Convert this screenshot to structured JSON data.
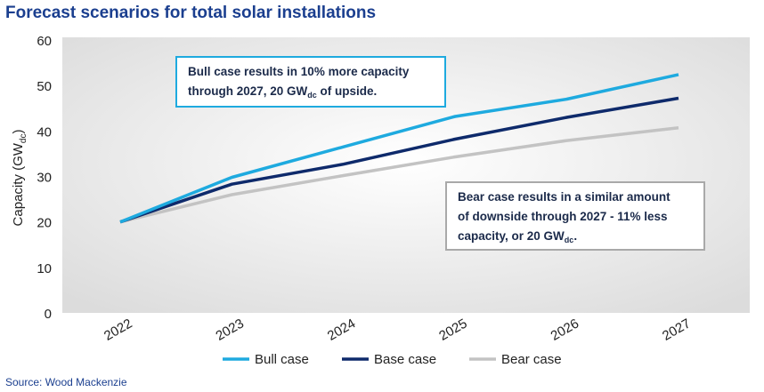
{
  "page": {
    "title": "Forecast scenarios for total solar installations",
    "source": "Source: Wood Mackenzie"
  },
  "colors": {
    "bull": "#1eaadf",
    "base": "#0e2a6b",
    "bear": "#c3c3c3",
    "title": "#1b3f8f",
    "plot_bg_inner": "#ffffff",
    "plot_bg_outer": "#dcdcdc"
  },
  "annotations": {
    "bull": {
      "line1": "Bull case results in 10% more capacity",
      "line2_pre": "through 2027, 20 GW",
      "line2_sub": "dc",
      "line2_post": " of upside."
    },
    "bear": {
      "line1": "Bear case results in a similar amount",
      "line2": "of downside through 2027 - 11% less",
      "line3_pre": "capacity, or 20 GW",
      "line3_sub": "dc",
      "line3_post": "."
    }
  },
  "chart_data": {
    "type": "line",
    "title": "Forecast scenarios for total solar installations",
    "categories": [
      "2022",
      "2023",
      "2024",
      "2025",
      "2026",
      "2027"
    ],
    "series": [
      {
        "name": "Bull case",
        "key": "bull",
        "values": [
          20,
          29.8,
          36.5,
          43.2,
          47,
          52.4
        ]
      },
      {
        "name": "Base case",
        "key": "base",
        "values": [
          20,
          28.3,
          32.7,
          38.2,
          43,
          47.2
        ]
      },
      {
        "name": "Bear case",
        "key": "bear",
        "values": [
          20,
          26,
          30.2,
          34.3,
          37.9,
          40.7
        ]
      }
    ],
    "ylabel": "Capacity (GW",
    "ylabel_sub": "dc",
    "ylabel_close": ")",
    "yticks": [
      "0",
      "10",
      "20",
      "30",
      "40",
      "50",
      "60"
    ],
    "ylim": [
      0,
      60
    ],
    "legend_position": "bottom-center",
    "grid": false
  }
}
